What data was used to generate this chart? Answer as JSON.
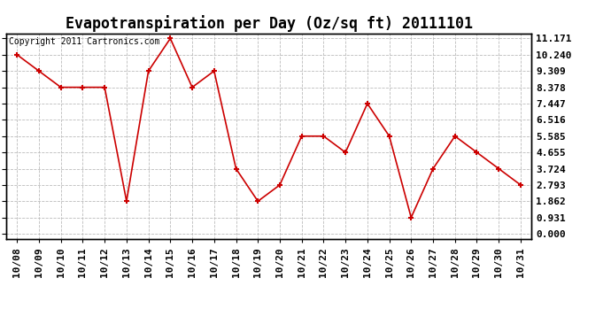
{
  "title": "Evapotranspiration per Day (Oz/sq ft) 20111101",
  "copyright_text": "Copyright 2011 Cartronics.com",
  "x_labels": [
    "10/08",
    "10/09",
    "10/10",
    "10/11",
    "10/12",
    "10/13",
    "10/14",
    "10/15",
    "10/16",
    "10/17",
    "10/18",
    "10/19",
    "10/20",
    "10/21",
    "10/22",
    "10/23",
    "10/24",
    "10/25",
    "10/26",
    "10/27",
    "10/28",
    "10/29",
    "10/30",
    "10/31"
  ],
  "y_values": [
    10.24,
    9.309,
    8.378,
    8.378,
    8.378,
    1.862,
    9.309,
    11.171,
    8.378,
    9.309,
    3.724,
    1.862,
    2.793,
    5.585,
    5.585,
    4.655,
    7.447,
    5.585,
    0.931,
    3.724,
    5.585,
    4.655,
    3.724,
    2.793
  ],
  "y_ticks": [
    0.0,
    0.931,
    1.862,
    2.793,
    3.724,
    4.655,
    5.585,
    6.516,
    7.447,
    8.378,
    9.309,
    10.24,
    11.171
  ],
  "line_color": "#cc0000",
  "marker_style": "+",
  "marker_color": "#cc0000",
  "bg_color": "#ffffff",
  "grid_color": "#bbbbbb",
  "ylim": [
    0.0,
    11.171
  ],
  "title_fontsize": 12,
  "copyright_fontsize": 7,
  "tick_fontsize": 8
}
